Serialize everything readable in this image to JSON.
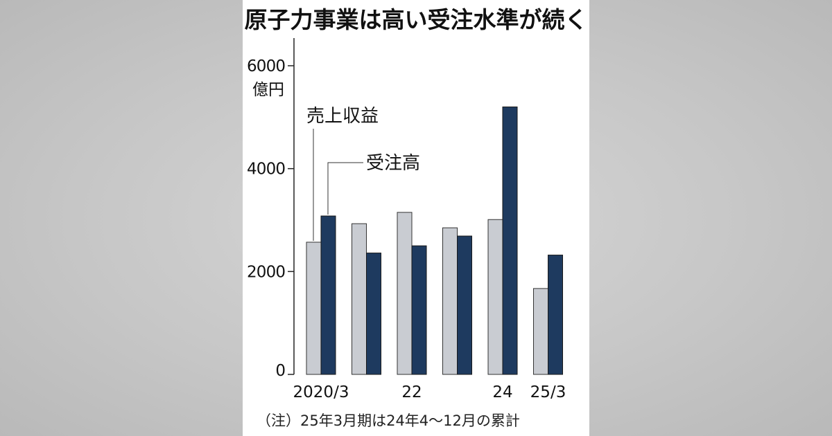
{
  "title": "原子力事業は高い受注水準が続く",
  "note": "（注）25年3月期は24年4〜12月の累計",
  "colors": {
    "revenue": "#c9ccd2",
    "orders": "#1e3a5f",
    "axis": "#222222"
  },
  "chart_data": {
    "type": "bar",
    "title": "原子力事業は高い受注水準が続く",
    "unit_label": "億円",
    "categories": [
      "2020/3",
      "21/3",
      "22/3",
      "23/3",
      "24/3",
      "25/3"
    ],
    "x_tick_labels": [
      "2020/3",
      "",
      "22",
      "",
      "24",
      "25/3"
    ],
    "series": [
      {
        "name": "売上収益",
        "values": [
          2570,
          2930,
          3150,
          2850,
          3010,
          1670
        ]
      },
      {
        "name": "受注高",
        "values": [
          3080,
          2360,
          2500,
          2690,
          5200,
          2320
        ]
      }
    ],
    "ylim": [
      0,
      6500
    ],
    "yticks": [
      0,
      2000,
      4000,
      6000
    ],
    "grid": false,
    "legend_placement": "top-left, callout labels"
  }
}
